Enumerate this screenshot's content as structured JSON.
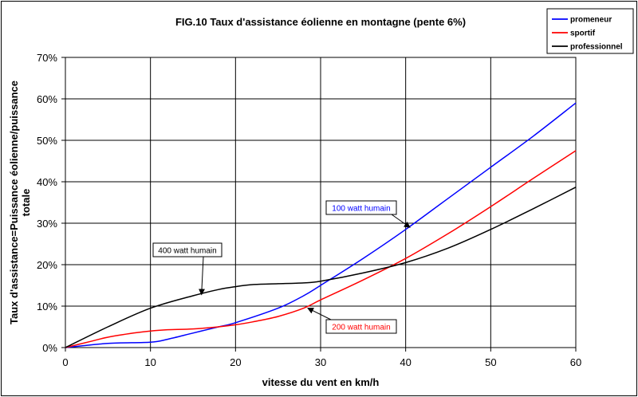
{
  "chart_data": {
    "type": "line",
    "title": "FIG.10 Taux d'assistance éolienne en montagne (pente 6%)",
    "xlabel": "vitesse du vent en km/h",
    "ylabel_lines": [
      "Taux d'assistance=Puissance éolienne/puissance",
      "totale"
    ],
    "xlim": [
      0,
      60
    ],
    "ylim": [
      0,
      0.7
    ],
    "x_ticks": [
      0,
      10,
      20,
      30,
      40,
      50,
      60
    ],
    "x_tick_labels": [
      "0",
      "10",
      "20",
      "30",
      "40",
      "50",
      "60"
    ],
    "y_ticks": [
      0,
      0.1,
      0.2,
      0.3,
      0.4,
      0.5,
      0.6,
      0.7
    ],
    "y_tick_labels": [
      "0%",
      "10%",
      "20%",
      "30%",
      "40%",
      "50%",
      "60%",
      "70%"
    ],
    "grid": true,
    "legend_position": "top-right",
    "series": [
      {
        "name": "promeneur",
        "color": "#0000ff",
        "x": [
          0,
          5,
          10,
          12,
          15,
          18,
          20,
          25,
          28,
          30,
          35,
          40,
          45,
          50,
          55,
          60
        ],
        "y": [
          0,
          0.01,
          0.013,
          0.02,
          0.035,
          0.05,
          0.06,
          0.095,
          0.125,
          0.15,
          0.215,
          0.285,
          0.36,
          0.435,
          0.51,
          0.59
        ]
      },
      {
        "name": "sportif",
        "color": "#ff0000",
        "x": [
          0,
          3,
          5,
          8,
          10,
          12,
          15,
          18,
          20,
          22,
          25,
          28,
          30,
          35,
          40,
          45,
          50,
          55,
          60
        ],
        "y": [
          0,
          0.015,
          0.025,
          0.035,
          0.04,
          0.043,
          0.045,
          0.05,
          0.055,
          0.062,
          0.075,
          0.095,
          0.115,
          0.163,
          0.215,
          0.275,
          0.34,
          0.408,
          0.475
        ]
      },
      {
        "name": "professionnel",
        "color": "#000000",
        "x": [
          0,
          5,
          10,
          15,
          18,
          20,
          22,
          25,
          28,
          30,
          35,
          40,
          45,
          50,
          55,
          60
        ],
        "y": [
          0,
          0.05,
          0.095,
          0.125,
          0.14,
          0.147,
          0.152,
          0.154,
          0.156,
          0.16,
          0.18,
          0.205,
          0.24,
          0.285,
          0.335,
          0.387
        ]
      }
    ],
    "annotations": [
      {
        "text": "100 watt humain",
        "color": "#0000ff",
        "series": "promeneur",
        "point": [
          40.5,
          0.29
        ]
      },
      {
        "text": "200 watt humain",
        "color": "#ff0000",
        "series": "sportif",
        "point": [
          28.5,
          0.095
        ]
      },
      {
        "text": "400 watt humain",
        "color": "#000000",
        "series": "professionnel",
        "point": [
          16,
          0.128
        ]
      }
    ],
    "colors": {
      "plot_background": "#ffffff",
      "grid": "#000000",
      "frame": "#000000"
    }
  }
}
